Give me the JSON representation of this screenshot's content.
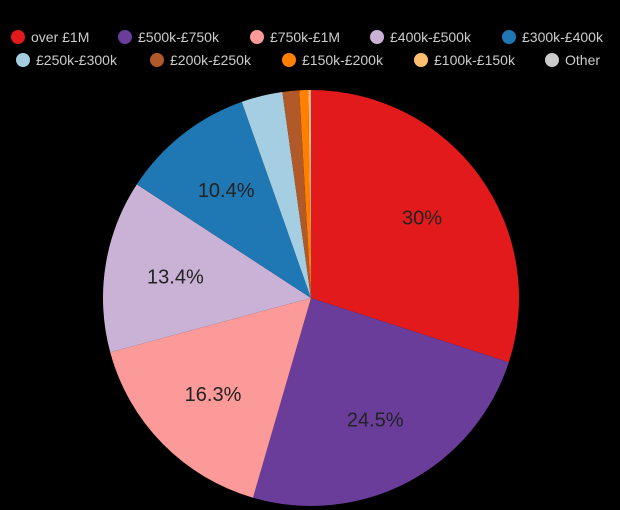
{
  "chart_data": {
    "type": "pie",
    "title": "",
    "legend_position": "top",
    "categories": [
      "over £1M",
      "£500k-£750k",
      "£750k-£1M",
      "£400k-£500k",
      "£300k-£400k",
      "£250k-£300k",
      "£200k-£250k",
      "£150k-£200k",
      "£100k-£150k",
      "Other"
    ],
    "values": [
      30,
      24.5,
      16.3,
      13.4,
      10.4,
      3.2,
      1.3,
      0.7,
      0.15,
      0.05
    ],
    "labels": [
      "30%",
      "24.5%",
      "16.3%",
      "13.4%",
      "10.4%",
      "",
      "",
      "",
      "",
      ""
    ],
    "colors": [
      "#e31a1c",
      "#6a3d9a",
      "#fb9a99",
      "#cab2d6",
      "#1f78b4",
      "#a6cee3",
      "#b15928",
      "#ff7f00",
      "#fdbf6f",
      "#cccccc"
    ]
  },
  "legend": [
    {
      "label": "over £1M",
      "color": "#e31a1c"
    },
    {
      "label": "£500k-£750k",
      "color": "#6a3d9a"
    },
    {
      "label": "£750k-£1M",
      "color": "#fb9a99"
    },
    {
      "label": "£400k-£500k",
      "color": "#cab2d6"
    },
    {
      "label": "£300k-£400k",
      "color": "#1f78b4"
    },
    {
      "label": "£250k-£300k",
      "color": "#a6cee3"
    },
    {
      "label": "£200k-£250k",
      "color": "#b15928"
    },
    {
      "label": "£150k-£200k",
      "color": "#ff7f00"
    },
    {
      "label": "£100k-£150k",
      "color": "#fdbf6f"
    },
    {
      "label": "Other",
      "color": "#cccccc"
    }
  ]
}
